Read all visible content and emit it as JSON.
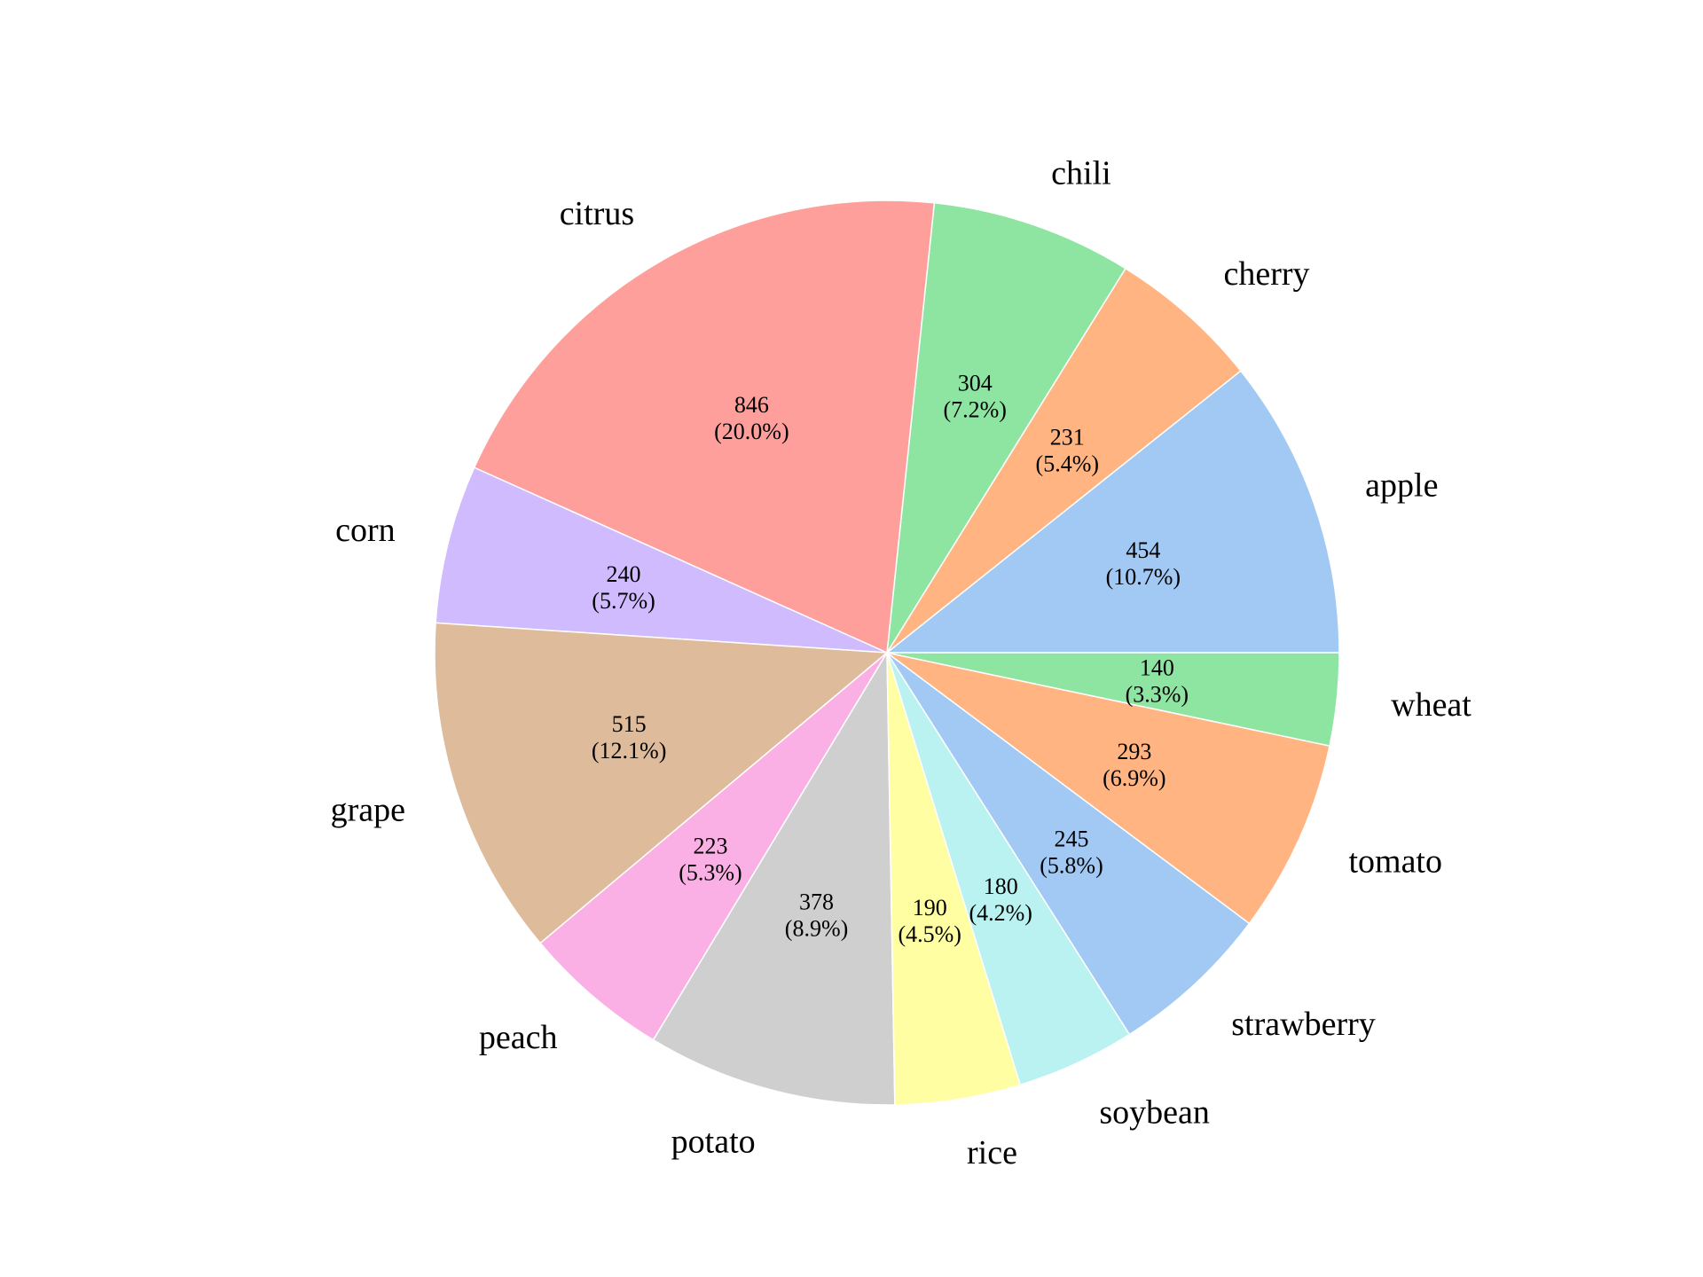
{
  "chart_data": {
    "type": "pie",
    "title": "",
    "start_angle_deg": 0,
    "direction": "counterclockwise",
    "slices": [
      {
        "label": "apple",
        "value": 454,
        "percent_label": "(10.7%)",
        "color": "#a1c9f4"
      },
      {
        "label": "cherry",
        "value": 231,
        "percent_label": "(5.4%)",
        "color": "#ffb482"
      },
      {
        "label": "chili",
        "value": 304,
        "percent_label": "(7.2%)",
        "color": "#8de5a1"
      },
      {
        "label": "citrus",
        "value": 846,
        "percent_label": "(20.0%)",
        "color": "#ff9f9b"
      },
      {
        "label": "corn",
        "value": 240,
        "percent_label": "(5.7%)",
        "color": "#d0bbff"
      },
      {
        "label": "grape",
        "value": 515,
        "percent_label": "(12.1%)",
        "color": "#debb9b"
      },
      {
        "label": "peach",
        "value": 223,
        "percent_label": "(5.3%)",
        "color": "#fab0e4"
      },
      {
        "label": "potato",
        "value": 378,
        "percent_label": "(8.9%)",
        "color": "#cfcfcf"
      },
      {
        "label": "rice",
        "value": 190,
        "percent_label": "(4.5%)",
        "color": "#fffea3"
      },
      {
        "label": "soybean",
        "value": 180,
        "percent_label": "(4.2%)",
        "color": "#b9f2f0"
      },
      {
        "label": "strawberry",
        "value": 245,
        "percent_label": "(5.8%)",
        "color": "#a1c9f4"
      },
      {
        "label": "tomato",
        "value": 293,
        "percent_label": "(6.9%)",
        "color": "#ffb482"
      },
      {
        "label": "wheat",
        "value": 140,
        "percent_label": "(3.3%)",
        "color": "#8de5a1"
      }
    ]
  }
}
